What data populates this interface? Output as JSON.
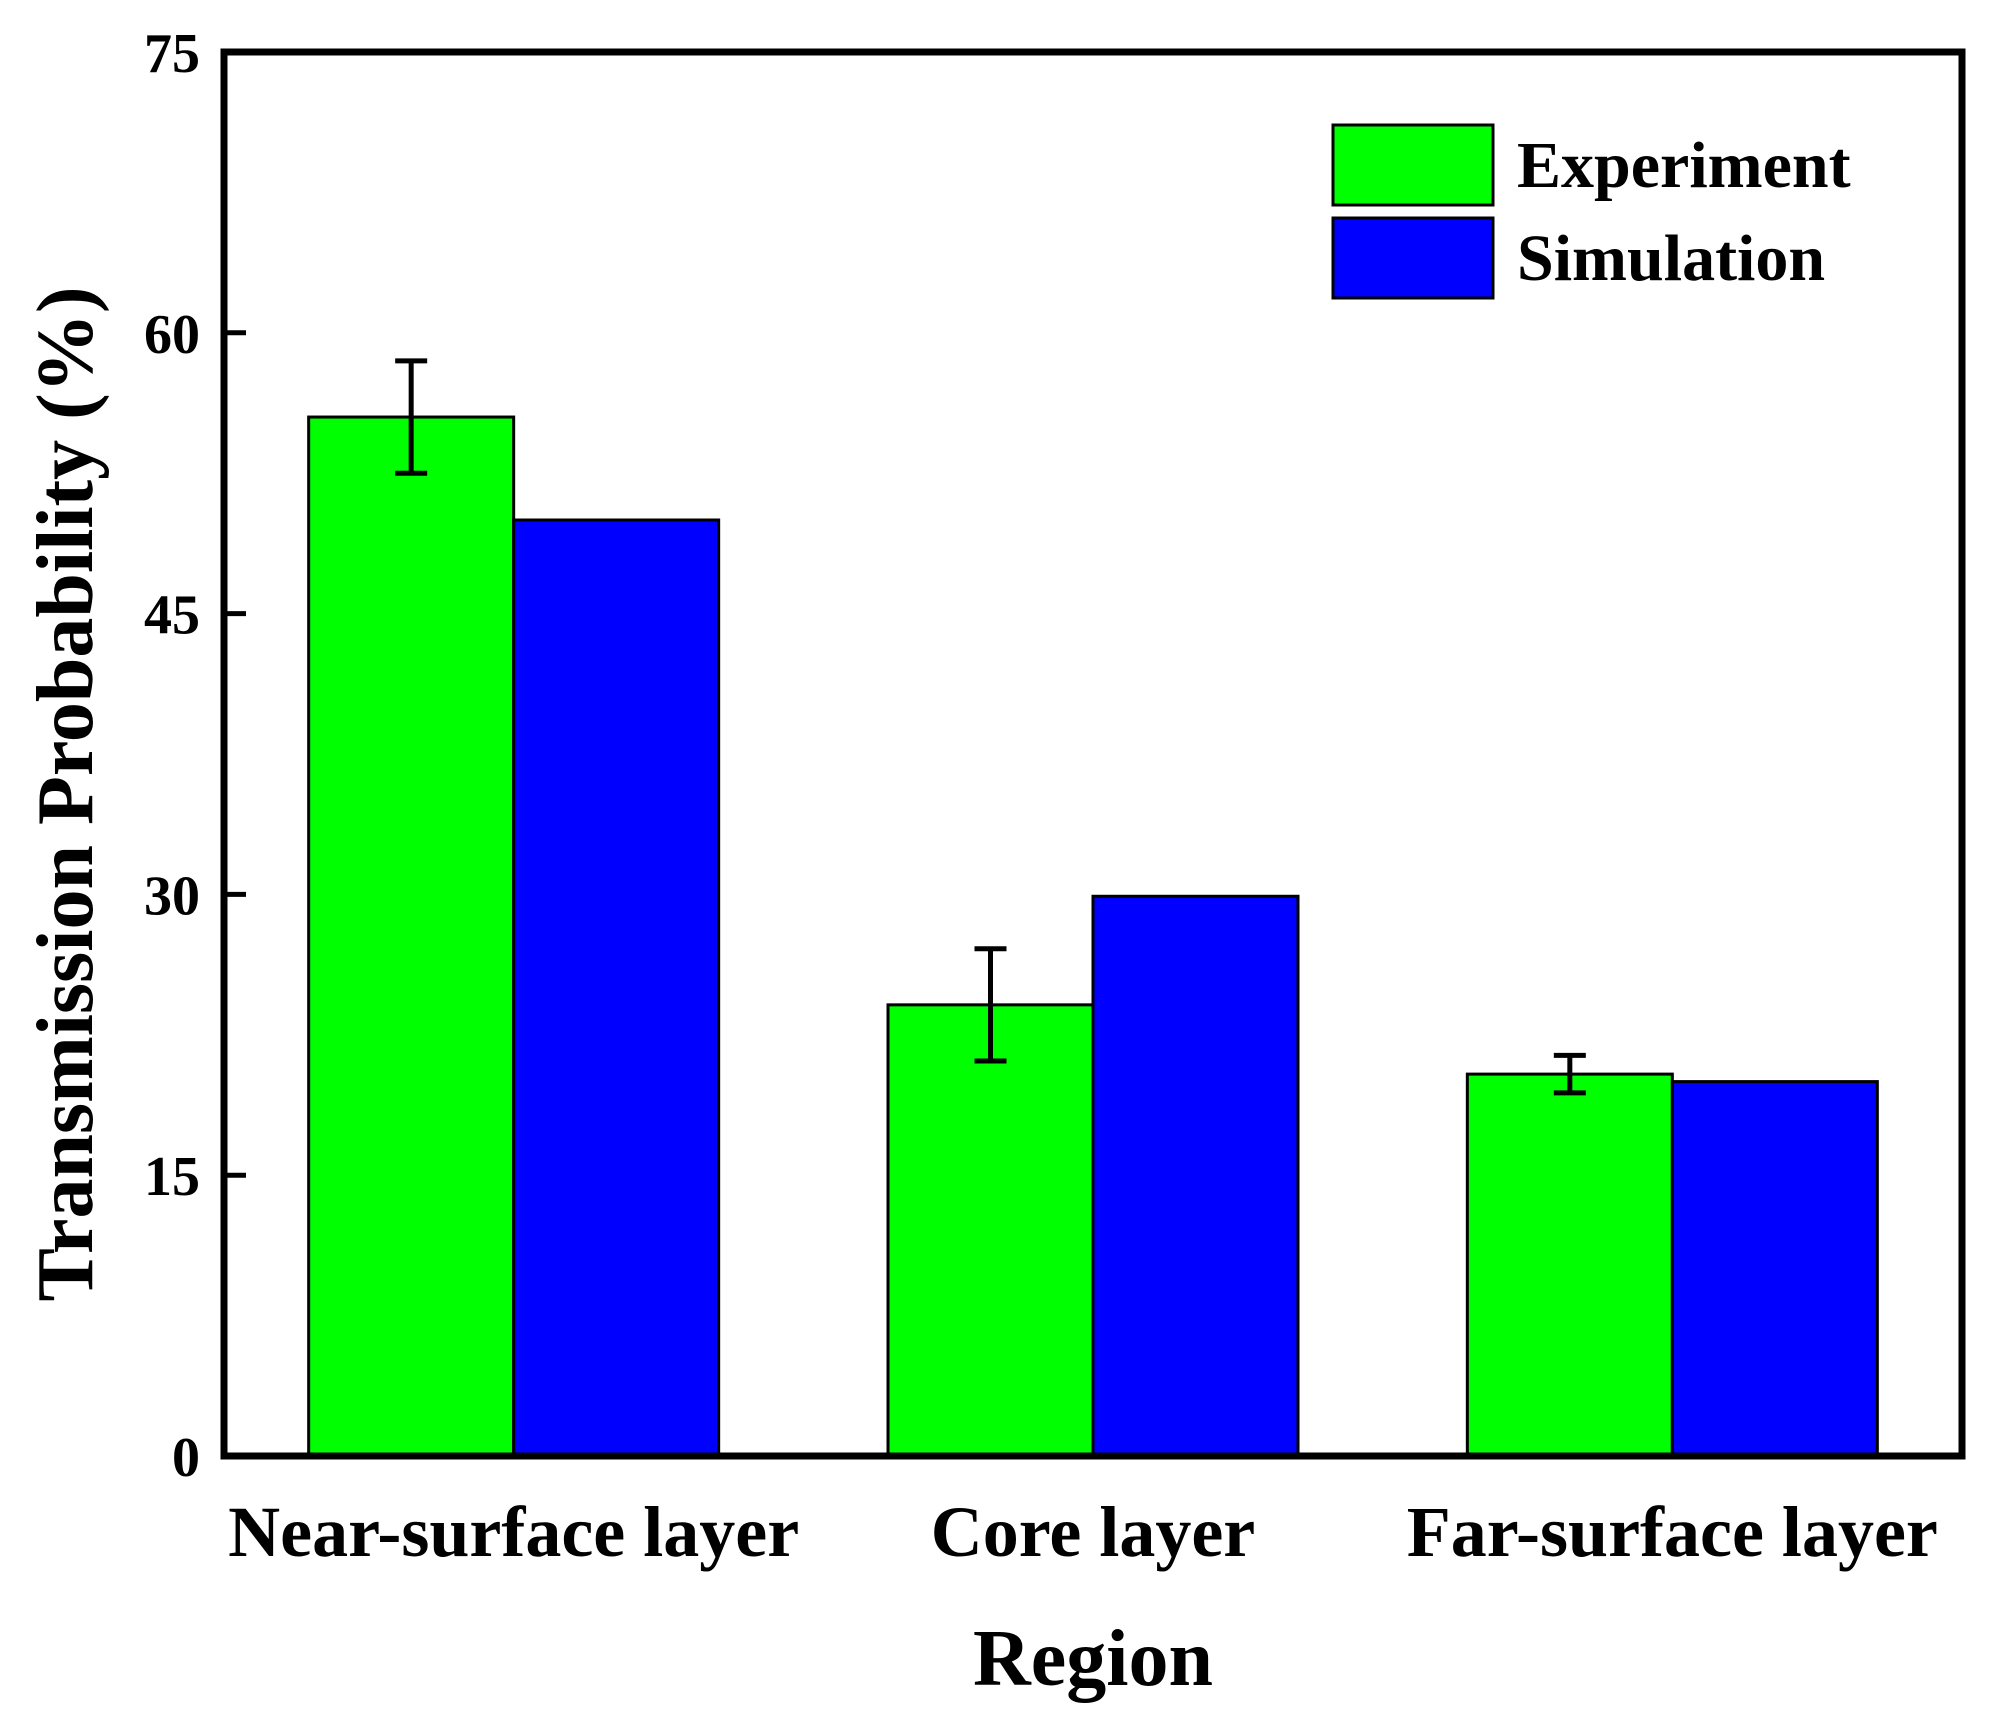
{
  "chart_data": {
    "type": "bar",
    "xlabel": "Region",
    "ylabel": "Transmission Probability (%)",
    "ylim": [
      0,
      75
    ],
    "yticks": [
      0,
      15,
      30,
      45,
      60,
      75
    ],
    "categories": [
      "Near-surface layer",
      "Core layer",
      "Far-surface layer"
    ],
    "series": [
      {
        "name": "Experiment",
        "color": "#00ff00",
        "values": [
          55.5,
          24.1,
          20.4
        ],
        "errors": [
          3.0,
          3.0,
          1.0
        ]
      },
      {
        "name": "Simulation",
        "color": "#0000ff",
        "values": [
          50.0,
          29.9,
          20.0
        ]
      }
    ],
    "legend_position": "top-right",
    "grid": false
  }
}
